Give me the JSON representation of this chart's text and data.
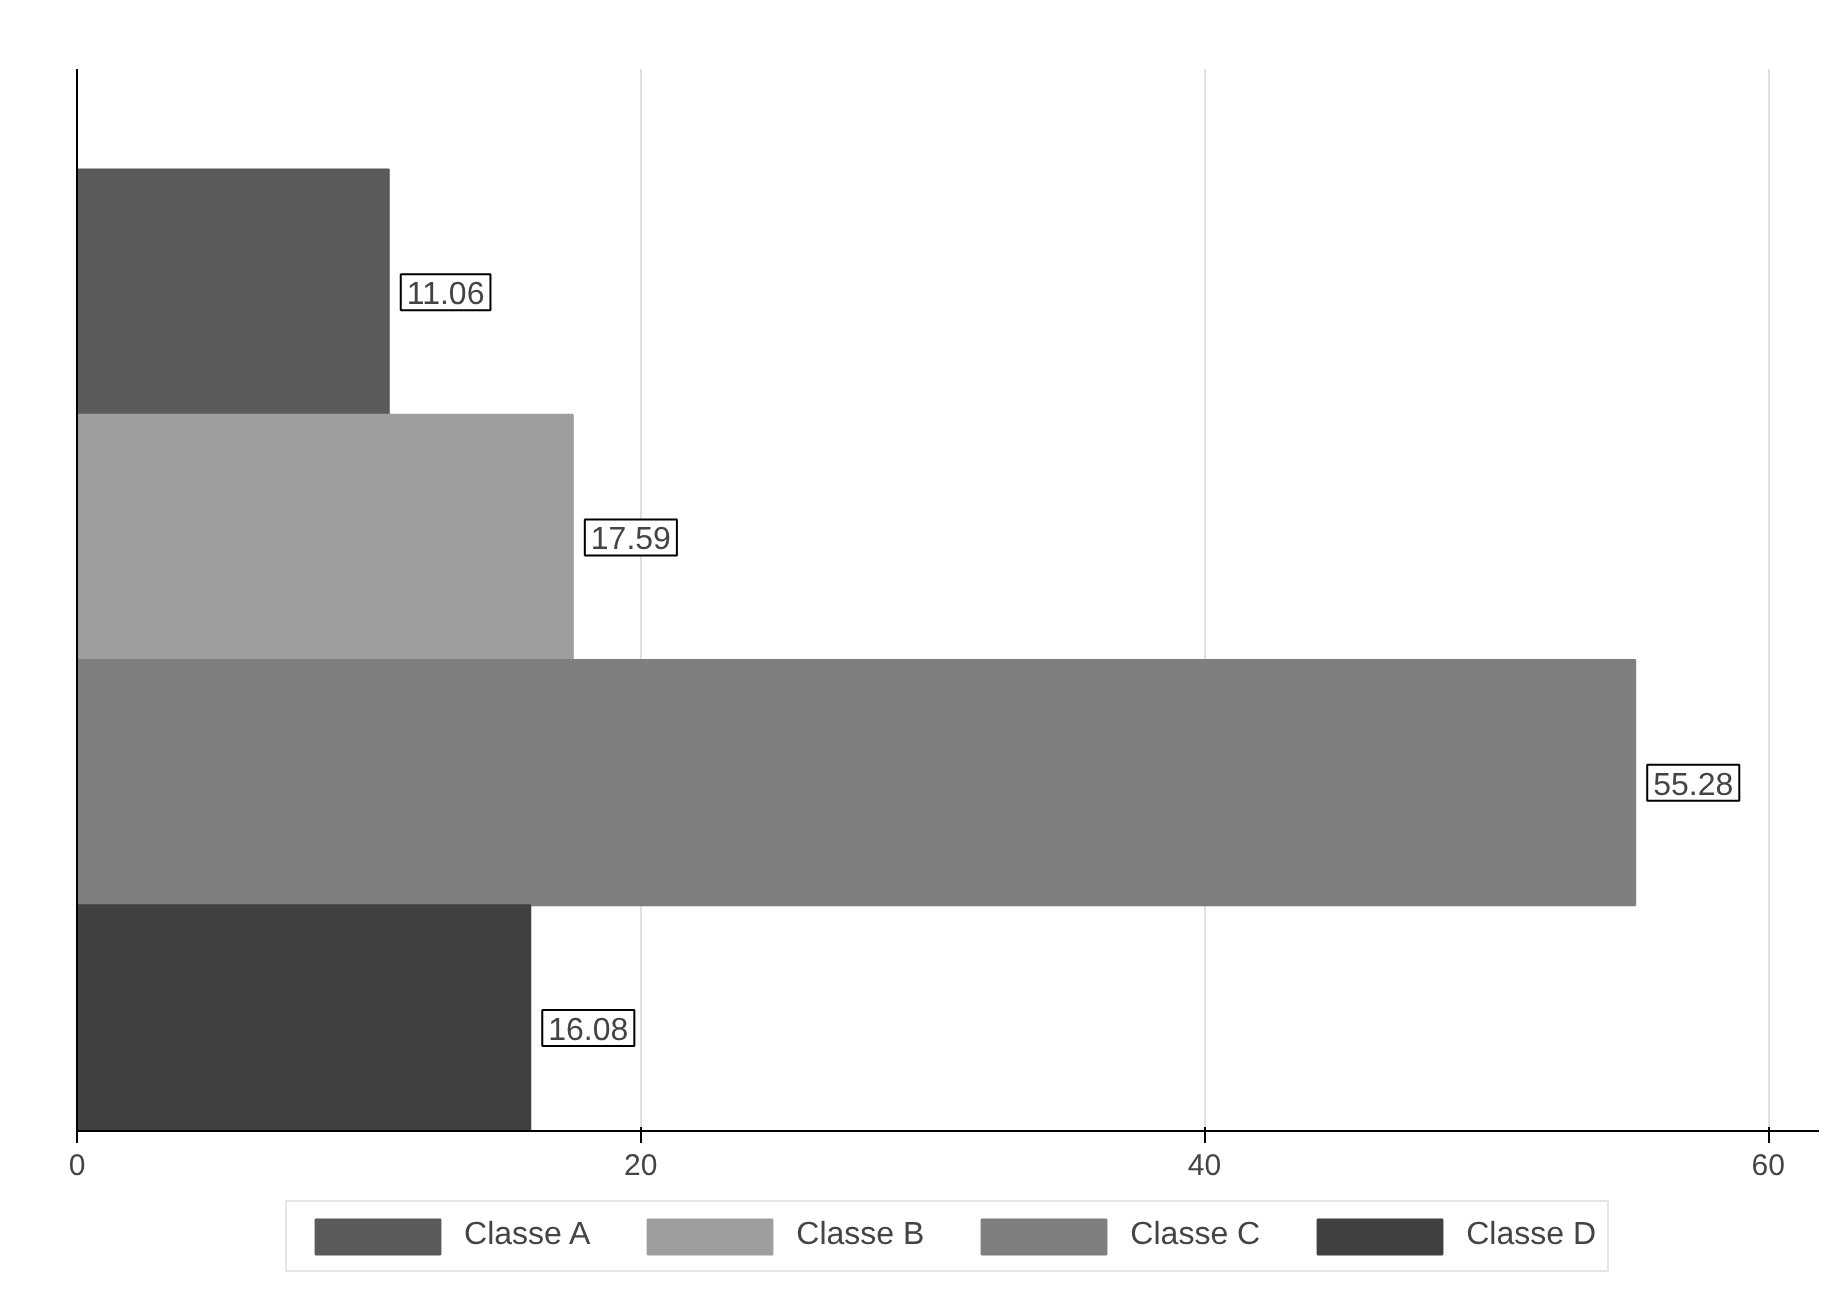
{
  "chart_data": {
    "type": "bar",
    "orientation": "horizontal",
    "categories": [
      null
    ],
    "series": [
      {
        "name": "Classe A",
        "color": "#5a5a5a",
        "values": [
          11.06
        ]
      },
      {
        "name": "Classe B",
        "color": "#9e9e9e",
        "values": [
          17.59
        ]
      },
      {
        "name": "Classe C",
        "color": "#7f7f7f",
        "values": [
          55.28
        ]
      },
      {
        "name": "Classe D",
        "color": "#404040",
        "values": [
          16.08
        ]
      }
    ],
    "xlim": [
      0,
      61.8
    ],
    "xticks": [
      0,
      20,
      40,
      60
    ],
    "grid": "x",
    "legend": "bottom",
    "data_labels": true,
    "tick_labels": "x"
  }
}
